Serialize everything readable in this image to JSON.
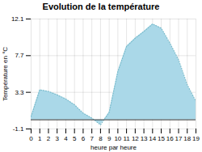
{
  "chart_data": {
    "type": "area",
    "title": "Evolution de la température",
    "xlabel": "heure par heure",
    "ylabel": "Température en °C",
    "x": [
      0,
      1,
      2,
      3,
      4,
      5,
      6,
      7,
      8,
      9,
      10,
      11,
      12,
      13,
      14,
      15,
      16,
      17,
      18,
      19
    ],
    "values": [
      0.4,
      3.6,
      3.4,
      3.0,
      2.5,
      1.8,
      0.8,
      0.2,
      -0.6,
      0.9,
      5.8,
      8.8,
      9.8,
      10.6,
      11.5,
      11.0,
      9.2,
      7.2,
      4.2,
      2.2
    ],
    "color": "#aad8e8",
    "line_style": "dotted",
    "xlim": [
      0,
      19
    ],
    "ylim": [
      -1.1,
      12.1
    ],
    "xticks": [
      0,
      1,
      2,
      3,
      4,
      5,
      6,
      7,
      8,
      9,
      10,
      11,
      12,
      13,
      14,
      15,
      16,
      17,
      18,
      19
    ],
    "yticks": [
      -1.1,
      3.3,
      7.7,
      12.1
    ],
    "grid": true
  }
}
